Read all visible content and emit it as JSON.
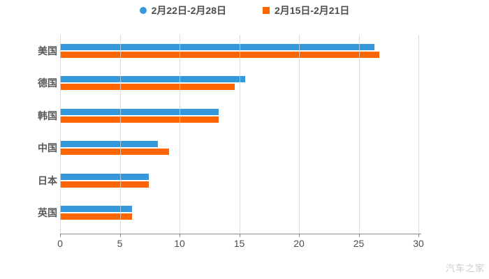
{
  "watermark": "汽车之家",
  "colors": {
    "background": "#ffffff",
    "blue": "#3498db",
    "orange": "#ff6600",
    "grid": "#d4d4d4",
    "axis": "#8c8c8c",
    "tick_label": "#4d4d4d",
    "category_label": "#595959",
    "legend_text": "#4d4d4d",
    "watermark_color": "#cccccc"
  },
  "chart_data": {
    "type": "bar",
    "orientation": "horizontal",
    "title": "",
    "xlabel": "",
    "ylabel": "",
    "categories": [
      "美国",
      "德国",
      "韩国",
      "中国",
      "日本",
      "英国"
    ],
    "series": [
      {
        "name": "2月22日-2月28日",
        "color": "#3498db",
        "marker": "circle",
        "values": [
          26.3,
          15.5,
          13.3,
          8.2,
          7.4,
          6.0
        ]
      },
      {
        "name": "2月15日-2月21日",
        "color": "#ff6600",
        "marker": "square",
        "values": [
          26.7,
          14.6,
          13.3,
          9.1,
          7.4,
          6.0
        ]
      }
    ],
    "x_ticks": [
      0,
      5,
      10,
      15,
      20,
      25,
      30
    ],
    "xlim": [
      0,
      30
    ],
    "grid": true,
    "legend_position": "top"
  }
}
